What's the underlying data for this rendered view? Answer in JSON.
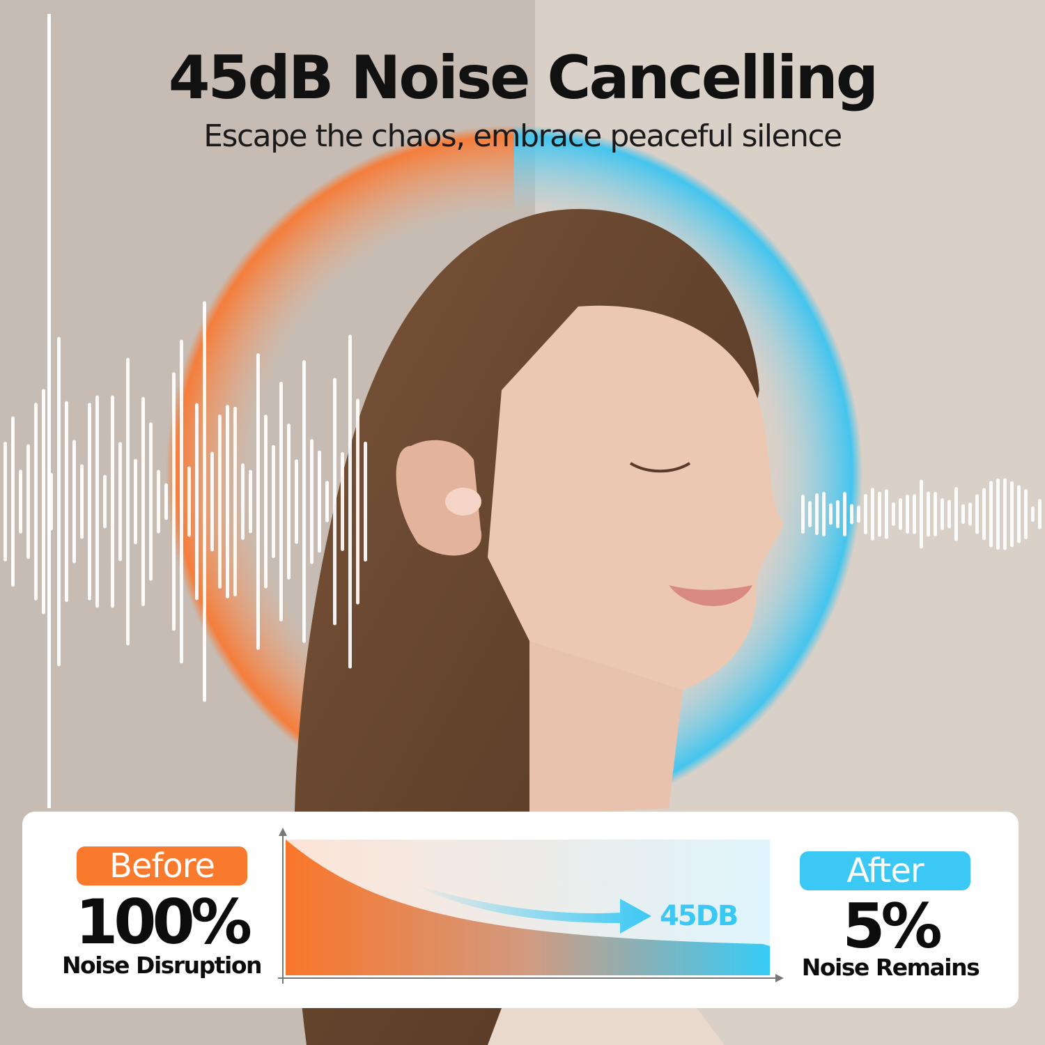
{
  "header": {
    "title": "45dB Noise Cancelling",
    "subtitle": "Escape the chaos, embrace peaceful silence"
  },
  "comparison": {
    "before": {
      "label": "Before",
      "value": "100%",
      "caption": "Noise Disruption",
      "color": "#f97a2c"
    },
    "after": {
      "label": "After",
      "value": "5%",
      "caption": "Noise Remains",
      "color": "#3cc8f4"
    },
    "reduction_label": "45DB"
  },
  "colors": {
    "background": "#d9d0c7",
    "hair": "#6b4a34",
    "skin": "#ecc8b3"
  }
}
